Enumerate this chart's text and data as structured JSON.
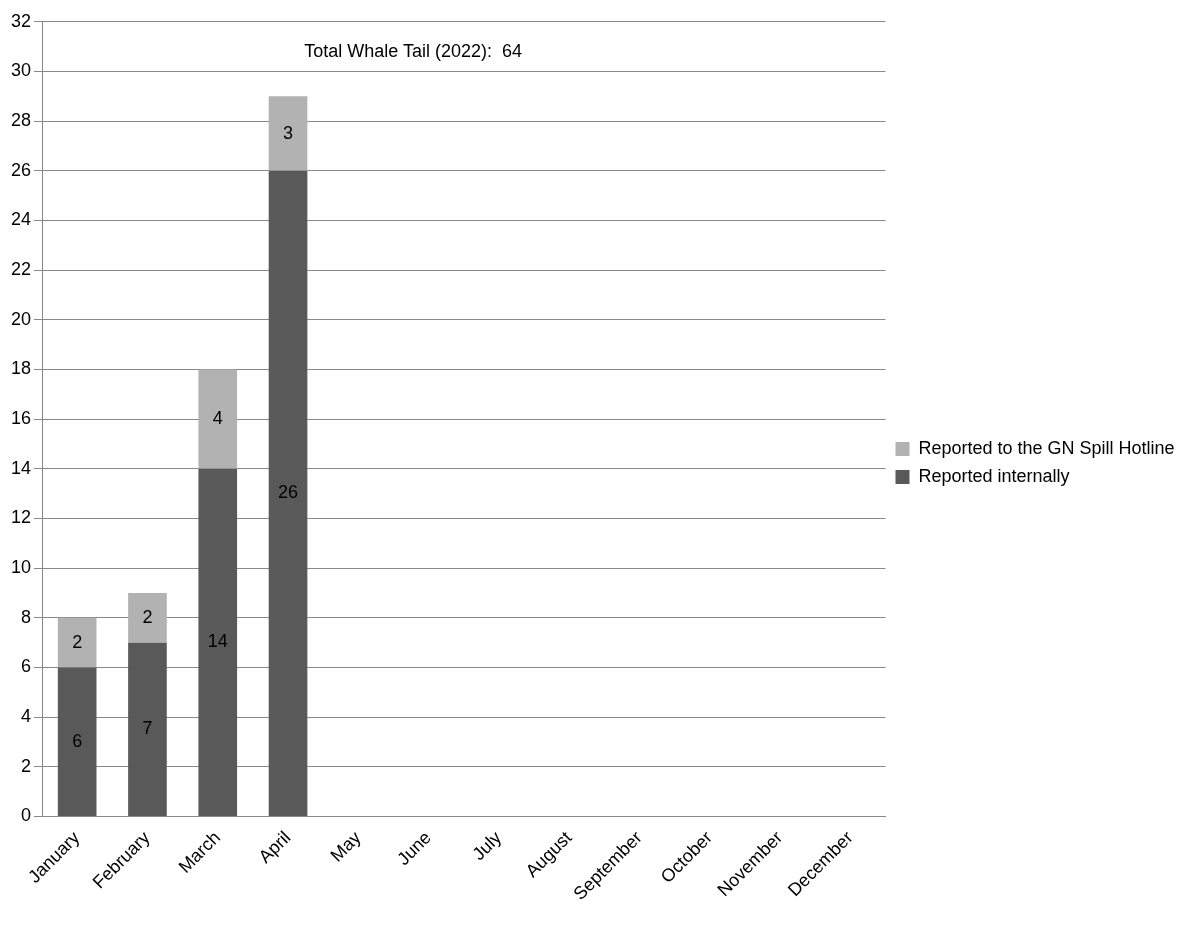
{
  "chart_data": {
    "type": "bar",
    "stacked": true,
    "categories": [
      "January",
      "February",
      "March",
      "April",
      "May",
      "June",
      "July",
      "August",
      "September",
      "October",
      "November",
      "December"
    ],
    "series": [
      {
        "name": "Reported internally",
        "color": "#595959",
        "values": [
          6,
          7,
          14,
          26,
          null,
          null,
          null,
          null,
          null,
          null,
          null,
          null
        ]
      },
      {
        "name": "Reported to the GN Spill Hotline",
        "color": "#b2b2b2",
        "values": [
          2,
          2,
          4,
          3,
          null,
          null,
          null,
          null,
          null,
          null,
          null,
          null
        ]
      }
    ],
    "ylim": [
      0,
      32
    ],
    "yticks": [
      0,
      2,
      4,
      6,
      8,
      10,
      12,
      14,
      16,
      18,
      20,
      22,
      24,
      26,
      28,
      30,
      32
    ],
    "grid": "y",
    "legend": "right",
    "data_labels": true,
    "annotations": [
      "Total Whale Tail (2022):  64"
    ]
  }
}
